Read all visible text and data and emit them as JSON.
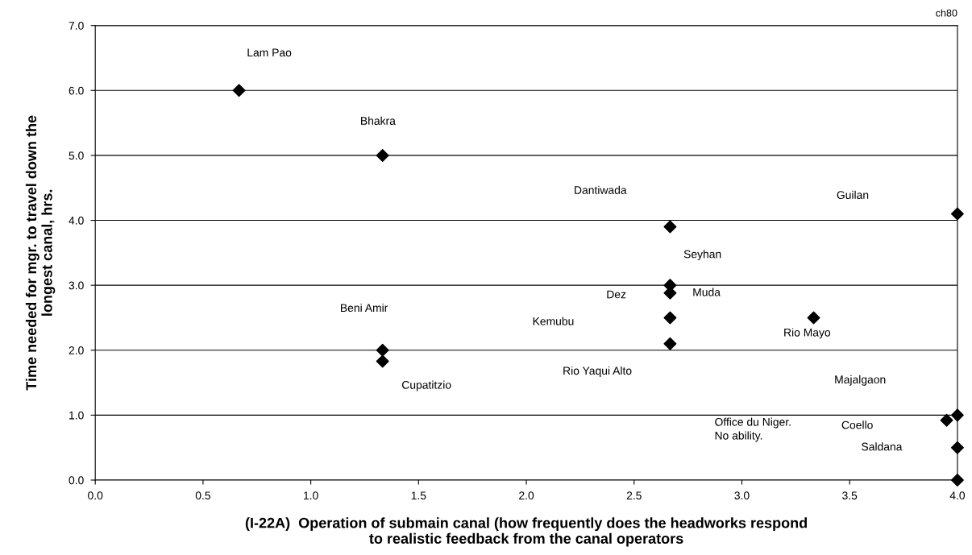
{
  "chart_data": {
    "type": "scatter",
    "xlabel": "(I-22A)  Operation of submain canal (how frequently does the headworks respond\nto realistic feedback from the canal operators",
    "ylabel": "Time needed for mgr. to travel down the\nlongest canal, hrs.",
    "series": [
      {
        "color": "#000000",
        "x": [
          0.667,
          1.333,
          2.667,
          4.0,
          2.667,
          2.667,
          2.667,
          2.667,
          3.333,
          1.333,
          1.333,
          4.0,
          3.95,
          4.0,
          4.0
        ],
        "values": [
          6.0,
          5.0,
          3.9,
          4.1,
          3.0,
          2.88,
          2.5,
          2.1,
          2.5,
          2.0,
          1.83,
          1.0,
          0.92,
          0.5,
          0.0
        ]
      }
    ],
    "marker": "diamond",
    "xlim": [
      0.0,
      4.0
    ],
    "ylim": [
      0.0,
      7.0
    ],
    "xticks": [
      {
        "value": 0,
        "label": "0.0"
      },
      {
        "value": 0.5,
        "label": "0.5"
      },
      {
        "value": 1,
        "label": "1.0"
      },
      {
        "value": 1.5,
        "label": "1.5"
      },
      {
        "value": 2,
        "label": "2.0"
      },
      {
        "value": 2.5,
        "label": "2.5"
      },
      {
        "value": 3,
        "label": "3.0"
      },
      {
        "value": 3.5,
        "label": "3.5"
      },
      {
        "value": 4,
        "label": "4.0"
      }
    ],
    "yticks": [
      {
        "value": 0,
        "label": "0.0"
      },
      {
        "value": 1,
        "label": "1.0"
      },
      {
        "value": 2,
        "label": "2.0"
      },
      {
        "value": 3,
        "label": "3.0"
      },
      {
        "value": 4,
        "label": "4.0"
      },
      {
        "value": 5,
        "label": "5.0"
      },
      {
        "value": 6,
        "label": "6.0"
      },
      {
        "value": 7,
        "label": "7.0"
      }
    ],
    "grid": "y",
    "annotations": [
      "Lam Pao",
      "Bhakra",
      "Dantiwada",
      "Guilan",
      "Seyhan",
      "Dez",
      "Muda",
      "Kemubu",
      "Rio Yaqui Alto",
      "Rio Mayo",
      "Beni Amir",
      "Cupatitzio",
      "Majalgaon",
      "Coello",
      "Saldana",
      "Office du Niger.\nNo ability.",
      "ch80"
    ]
  }
}
